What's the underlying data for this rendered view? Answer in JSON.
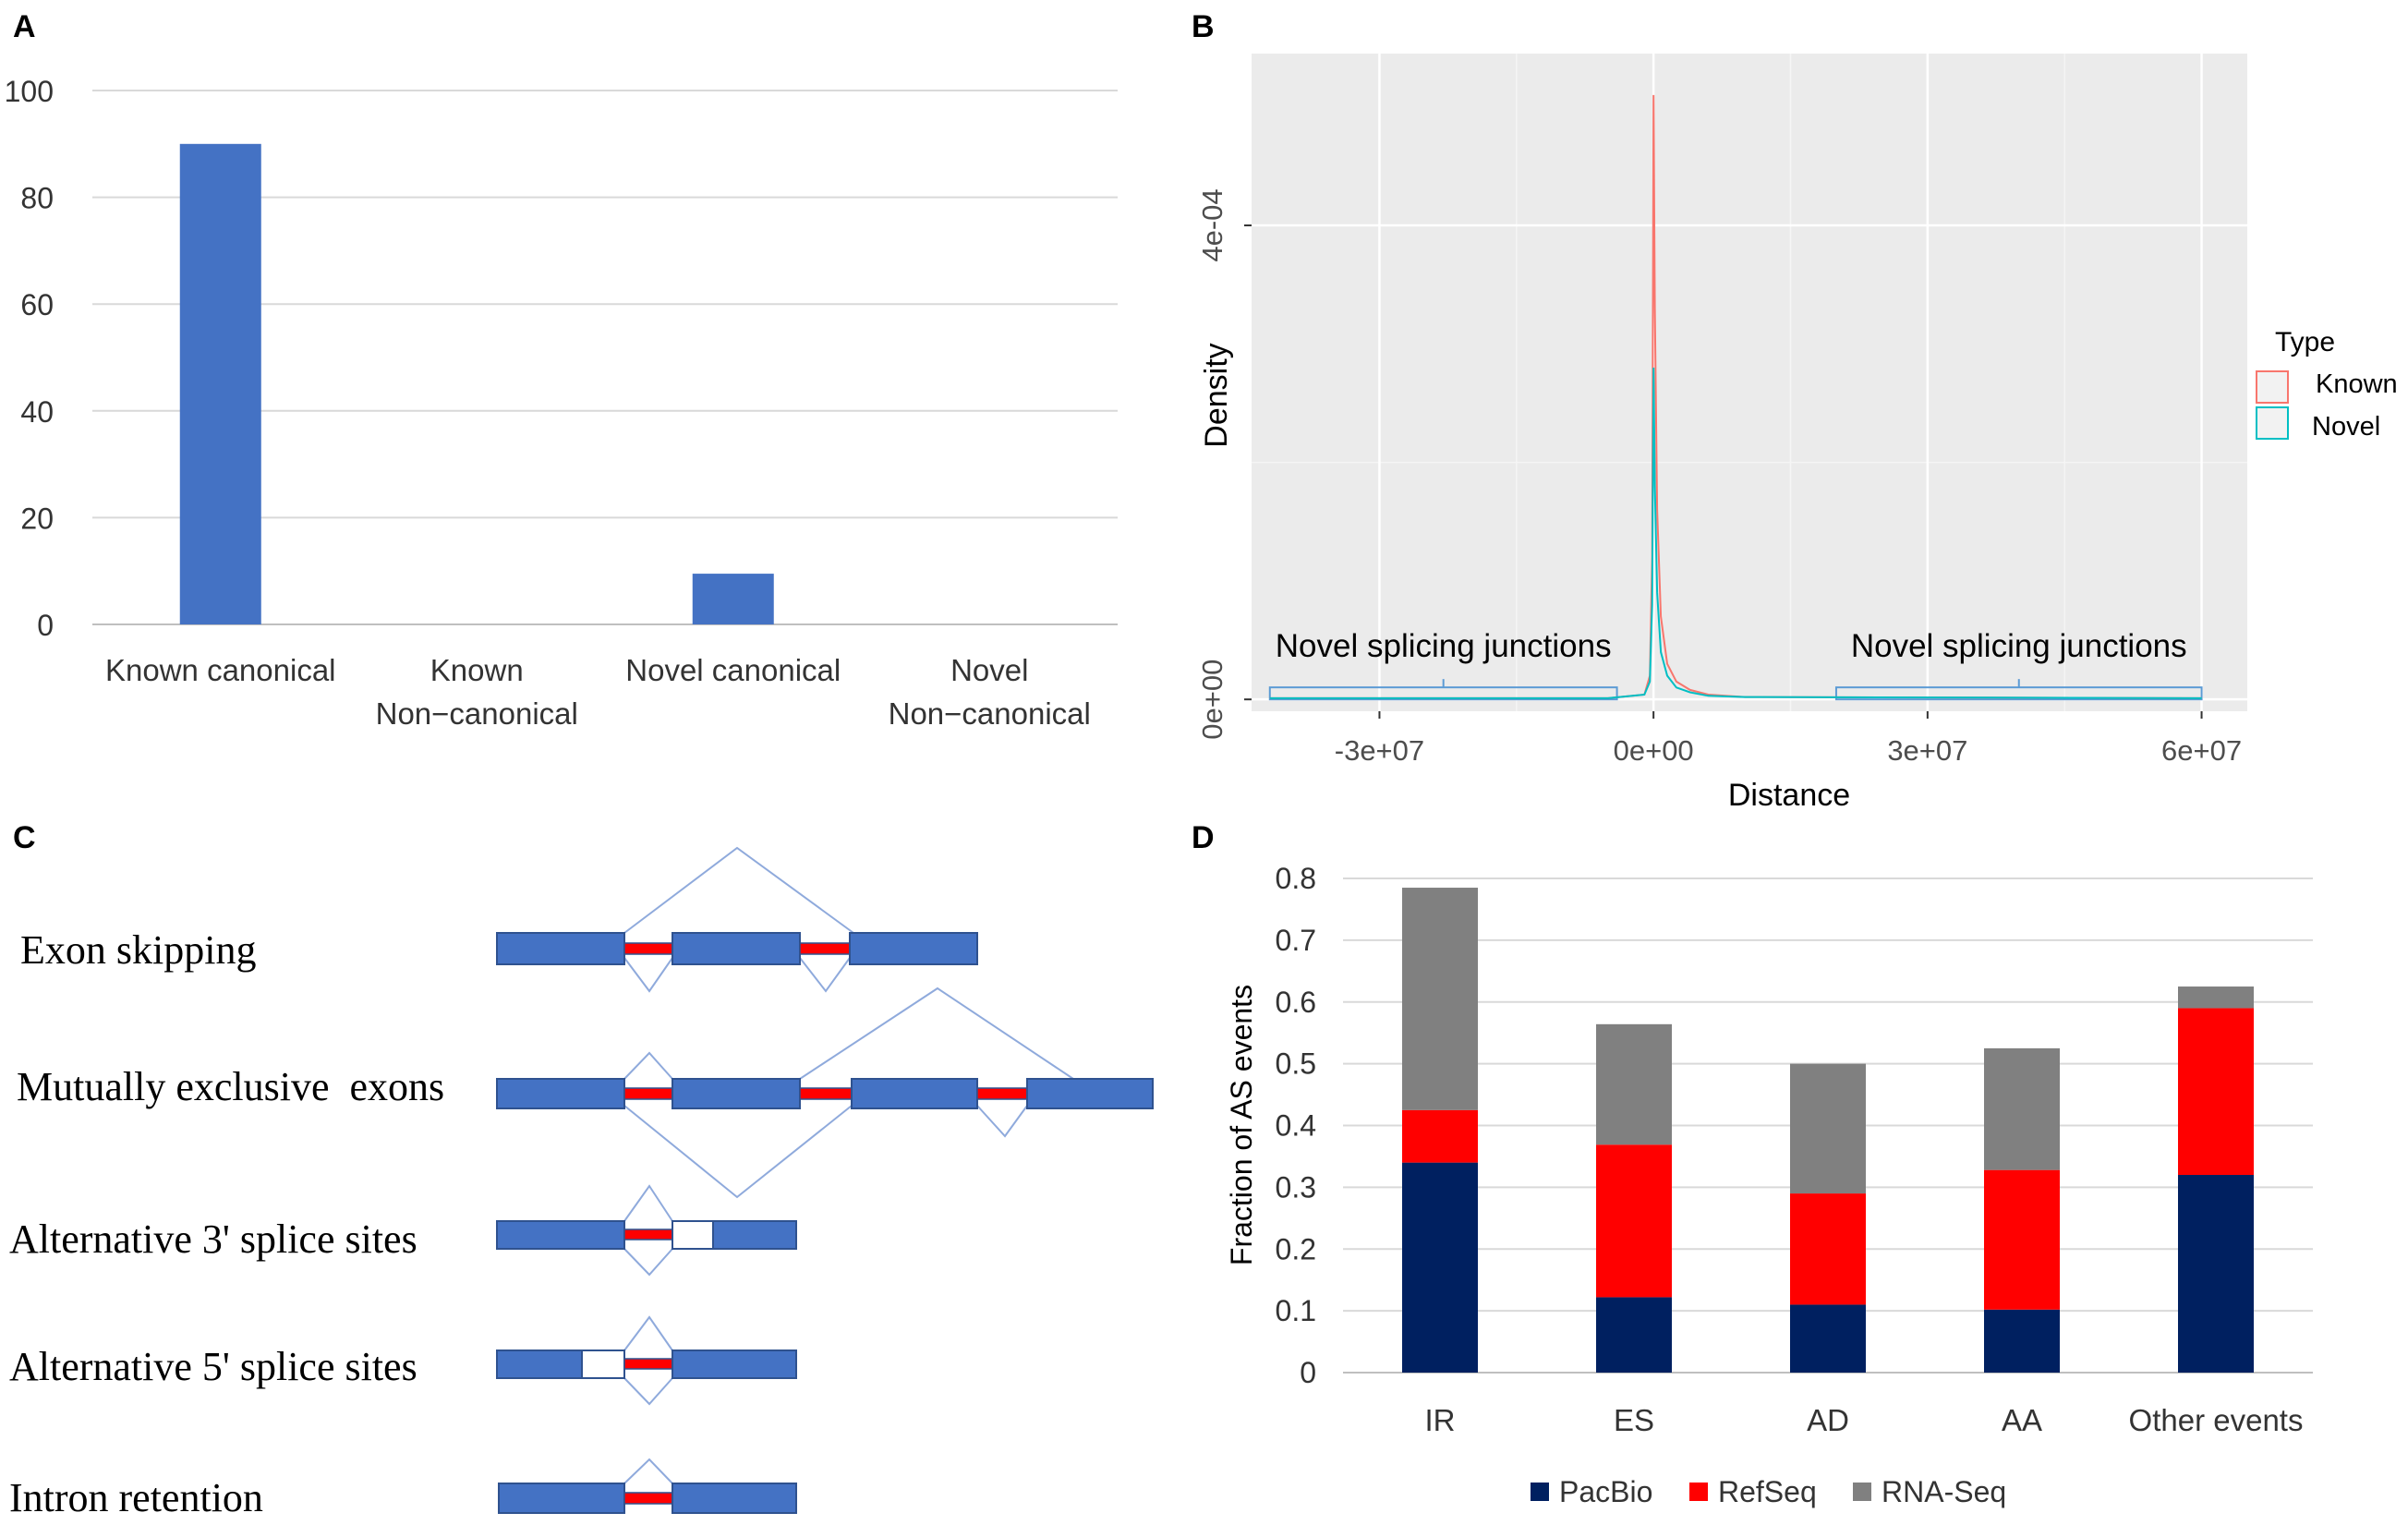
{
  "panels": {
    "a": {
      "label": "A"
    },
    "b": {
      "label": "B"
    },
    "c": {
      "label": "C"
    },
    "d": {
      "label": "D"
    }
  },
  "colors": {
    "bar_blue": "#4472C4",
    "known": "#F8766D",
    "novel": "#00BFC4",
    "pacbio": "#002060",
    "refseq": "#FF0000",
    "rnaseq": "#808080",
    "ggplot_bg": "#EBEBEB",
    "exon_fill": "#4472C4",
    "exon_stroke": "#2F528F",
    "splice_line": "#8FAADC",
    "bracket": "#5B9BD5"
  },
  "chart_data": [
    {
      "id": "A",
      "type": "bar",
      "categories": [
        [
          "Known canonical"
        ],
        [
          "Known",
          "Non−canonical"
        ],
        [
          "Novel canonical"
        ],
        [
          "Novel",
          "Non−canonical"
        ]
      ],
      "values": [
        90,
        0,
        9.5,
        0
      ],
      "ylim": [
        0,
        100
      ],
      "yticks": [
        0,
        20,
        40,
        60,
        80,
        100
      ],
      "title": "",
      "xlabel": "",
      "ylabel": ""
    },
    {
      "id": "B",
      "type": "line",
      "xlabel": "Distance",
      "ylabel": "Density",
      "xlim": [
        -44000000.0,
        65000000.0
      ],
      "ylim": [
        -1e-05,
        0.000545
      ],
      "xticks": [
        {
          "v": -30000000.0,
          "label": "-3e+07"
        },
        {
          "v": 0,
          "label": "0e+00"
        },
        {
          "v": 30000000.0,
          "label": "3e+07"
        },
        {
          "v": 60000000.0,
          "label": "6e+07"
        }
      ],
      "yticks": [
        {
          "v": 0,
          "label": "0e+00"
        },
        {
          "v": 0.0004,
          "label": "4e-04"
        }
      ],
      "legend": {
        "title": "Type",
        "entries": [
          "Known",
          "Novel"
        ],
        "position": "right"
      },
      "series": [
        {
          "name": "Known",
          "x": [
            -42000000.0,
            -5000000.0,
            -1000000.0,
            -400000.0,
            -150000.0,
            0,
            150000.0,
            400000.0,
            800000.0,
            1500000.0,
            2500000.0,
            4000000.0,
            6000000.0,
            10000000.0,
            60000000.0
          ],
          "y": [
            1e-06,
            1e-06,
            4e-06,
            2e-05,
            0.00012,
            0.00051,
            0.00033,
            0.00016,
            7e-05,
            3e-05,
            1.5e-05,
            8e-06,
            4e-06,
            2e-06,
            1e-06
          ]
        },
        {
          "name": "Novel",
          "x": [
            -42000000.0,
            -5000000.0,
            -1000000.0,
            -400000.0,
            -150000.0,
            0,
            150000.0,
            400000.0,
            800000.0,
            1500000.0,
            2500000.0,
            4000000.0,
            6000000.0,
            10000000.0,
            60000000.0
          ],
          "y": [
            1e-06,
            1e-06,
            4e-06,
            1.5e-05,
            8e-05,
            0.00028,
            0.00018,
            9e-05,
            4e-05,
            2e-05,
            1e-05,
            6e-06,
            3e-06,
            2e-06,
            1e-06
          ]
        }
      ],
      "annotations": [
        {
          "text": "Novel splicing junctions",
          "range": [
            -42000000.0,
            -4000000.0
          ]
        },
        {
          "text": "Novel splicing junctions",
          "range": [
            20000000.0,
            60000000.0
          ]
        }
      ]
    },
    {
      "id": "D",
      "type": "bar",
      "stacked": true,
      "categories": [
        "IR",
        "ES",
        "AD",
        "AA",
        "Other events"
      ],
      "ylabel": "Fraction of AS events",
      "ylim": [
        0,
        0.8
      ],
      "yticks": [
        "0",
        "0.1",
        "0.2",
        "0.3",
        "0.4",
        "0.5",
        "0.6",
        "0.7",
        "0.8"
      ],
      "series": [
        {
          "name": "PacBio",
          "values": [
            0.34,
            0.122,
            0.11,
            0.102,
            0.32
          ]
        },
        {
          "name": "RefSeq",
          "values": [
            0.085,
            0.247,
            0.18,
            0.226,
            0.27
          ]
        },
        {
          "name": "RNA-Seq",
          "values": [
            0.36,
            0.195,
            0.21,
            0.197,
            0.035
          ]
        }
      ],
      "legend": {
        "entries": [
          "PacBio",
          "RefSeq",
          "RNA-Seq"
        ],
        "position": "bottom"
      }
    }
  ],
  "diagram": {
    "rows": [
      {
        "id": "es",
        "label": "Exon skipping"
      },
      {
        "id": "mxe",
        "label": "Mutually exclusive  exons"
      },
      {
        "id": "a3ss",
        "label": "Alternative 3' splice sites"
      },
      {
        "id": "a5ss",
        "label": "Alternative 5' splice sites"
      },
      {
        "id": "ir",
        "label": "Intron retention"
      }
    ]
  }
}
